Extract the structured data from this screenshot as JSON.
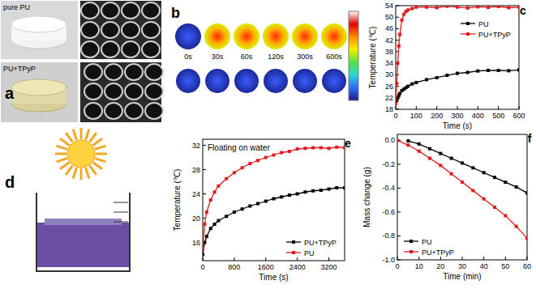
{
  "figure": {
    "a": {
      "label": "a",
      "photos": [
        "pure PU",
        "PU+TPyP"
      ]
    },
    "b": {
      "label": "b",
      "times": [
        "0s",
        "30s",
        "60s",
        "120s",
        "300s",
        "600s"
      ]
    },
    "d": {
      "label": "d"
    }
  },
  "chart_data": [
    {
      "type": "line",
      "title": "c",
      "x_label": "Time (s)",
      "y_label": "Temperature (℃)",
      "x": [
        0,
        5,
        10,
        15,
        20,
        30,
        40,
        50,
        60,
        80,
        100,
        150,
        200,
        250,
        300,
        350,
        400,
        450,
        500,
        550,
        600
      ],
      "series": [
        {
          "name": "PU",
          "color": "#000000",
          "marker": "square",
          "values": [
            20,
            21,
            22,
            22.8,
            23.5,
            24.5,
            25,
            25.5,
            26,
            26.8,
            27.3,
            28.3,
            29,
            29.8,
            30.5,
            30.8,
            31.3,
            31.5,
            31.5,
            31.4,
            31.7
          ]
        },
        {
          "name": "PU+TPyP",
          "color": "#e41a1c",
          "marker": "square",
          "values": [
            20,
            27,
            34,
            40,
            44,
            49,
            51,
            52,
            52.5,
            53,
            53.5,
            53.5,
            53.3,
            53.8,
            53.5,
            53.2,
            53.6,
            53.4,
            53.7,
            53.3,
            53.5
          ]
        }
      ],
      "xlim": [
        0,
        600
      ],
      "xticks": [
        0,
        100,
        200,
        300,
        400,
        500,
        600
      ],
      "ylim": [
        18,
        54
      ],
      "yticks": [
        18,
        22,
        26,
        30,
        34,
        38,
        42,
        46,
        50,
        54
      ],
      "legend": "upper right"
    },
    {
      "type": "line",
      "title": "e",
      "annotations": [
        "Floating on water"
      ],
      "x_label": "Time (s)",
      "y_label": "Temperature (℃)",
      "x": [
        0,
        50,
        100,
        200,
        300,
        400,
        600,
        800,
        1000,
        1200,
        1400,
        1600,
        1800,
        2000,
        2200,
        2400,
        2600,
        2800,
        3000,
        3200,
        3400,
        3600
      ],
      "series": [
        {
          "name": "PU+TPyP",
          "color": "#000000",
          "marker": "square",
          "values": [
            14,
            16,
            17,
            18.3,
            19,
            19.6,
            20.3,
            21,
            21.5,
            22,
            22.4,
            22.8,
            23.2,
            23.5,
            23.8,
            24,
            24.3,
            24.5,
            24.6,
            24.8,
            25,
            25
          ]
        },
        {
          "name": "PU",
          "color": "#e41a1c",
          "marker": "square",
          "values": [
            15,
            19,
            21,
            23,
            24.3,
            25.3,
            26.5,
            27.5,
            28.3,
            29,
            29.5,
            30,
            30.4,
            30.8,
            31,
            31.4,
            31.5,
            31.6,
            31.6,
            31.5,
            31.7,
            31.6
          ]
        }
      ],
      "xlim": [
        0,
        3600
      ],
      "xticks": [
        0,
        800,
        1600,
        2400,
        3200
      ],
      "ylim": [
        13,
        33
      ],
      "yticks": [
        16,
        20,
        24,
        28,
        32
      ],
      "legend": "lower right"
    },
    {
      "type": "line",
      "title": "f",
      "x_label": "Time (min)",
      "y_label": "Mass change (g)",
      "x": [
        0,
        5,
        10,
        15,
        20,
        25,
        30,
        35,
        40,
        45,
        50,
        55,
        60
      ],
      "series": [
        {
          "name": "PU",
          "color": "#000000",
          "marker": "square",
          "values": [
            null,
            -0.005,
            -0.03,
            -0.07,
            -0.11,
            -0.15,
            -0.19,
            -0.23,
            -0.27,
            -0.31,
            -0.35,
            -0.39,
            -0.44
          ]
        },
        {
          "name": "PU+TPyP",
          "color": "#e41a1c",
          "marker": "square",
          "values": [
            0,
            -0.04,
            -0.09,
            -0.15,
            -0.21,
            -0.28,
            -0.35,
            -0.42,
            -0.49,
            -0.56,
            -0.63,
            -0.72,
            -0.82
          ]
        }
      ],
      "xlim": [
        0,
        60
      ],
      "xticks": [
        0,
        10,
        20,
        30,
        40,
        50,
        60
      ],
      "ylim": [
        -1.0,
        0.05
      ],
      "yticks": [
        {
          "value": 0,
          "label": "0.0"
        },
        -0.2,
        -0.4,
        -0.6,
        -0.8,
        {
          "value": -1.0,
          "label": "-1.0"
        }
      ],
      "legend": "lower left"
    }
  ]
}
